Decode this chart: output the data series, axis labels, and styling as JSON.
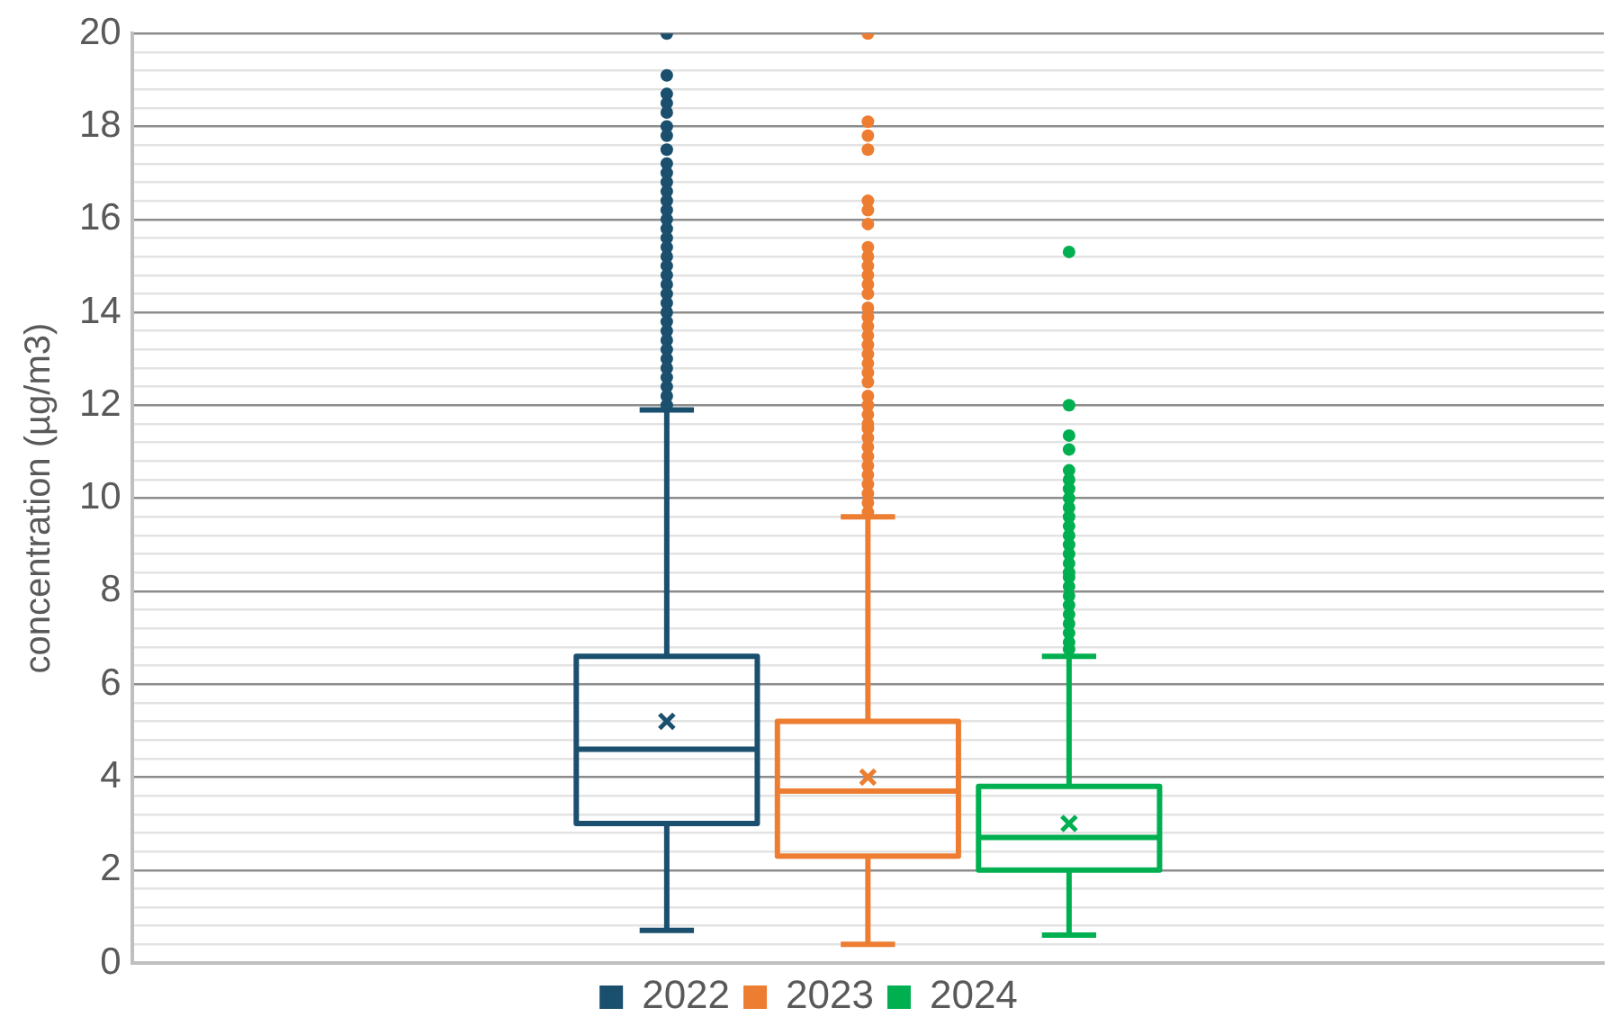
{
  "chart_data": {
    "type": "box",
    "ylabel": "concentration (µg/m3)",
    "categories": [
      null
    ],
    "ylim": [
      0,
      20
    ],
    "yticks": [
      0,
      {
        "value": 0.4,
        "label": null
      },
      {
        "value": 0.8,
        "label": null
      },
      {
        "value": 1.2,
        "label": null
      },
      {
        "value": 1.6,
        "label": null
      },
      2,
      {
        "value": 2.4,
        "label": null
      },
      {
        "value": 2.8,
        "label": null
      },
      {
        "value": 3.2,
        "label": null
      },
      {
        "value": 3.6,
        "label": null
      },
      4,
      {
        "value": 4.4,
        "label": null
      },
      {
        "value": 4.8,
        "label": null
      },
      {
        "value": 5.2,
        "label": null
      },
      {
        "value": 5.6,
        "label": null
      },
      6,
      {
        "value": 6.4,
        "label": null
      },
      {
        "value": 6.8,
        "label": null
      },
      {
        "value": 7.2,
        "label": null
      },
      {
        "value": 7.6,
        "label": null
      },
      8,
      {
        "value": 8.4,
        "label": null
      },
      {
        "value": 8.8,
        "label": null
      },
      {
        "value": 9.2,
        "label": null
      },
      {
        "value": 9.6,
        "label": null
      },
      10,
      {
        "value": 10.4,
        "label": null
      },
      {
        "value": 10.8,
        "label": null
      },
      {
        "value": 11.2,
        "label": null
      },
      {
        "value": 11.6,
        "label": null
      },
      12,
      {
        "value": 12.4,
        "label": null
      },
      {
        "value": 12.8,
        "label": null
      },
      {
        "value": 13.2,
        "label": null
      },
      {
        "value": 13.6,
        "label": null
      },
      14,
      {
        "value": 14.4,
        "label": null
      },
      {
        "value": 14.8,
        "label": null
      },
      {
        "value": 15.2,
        "label": null
      },
      {
        "value": 15.6,
        "label": null
      },
      16,
      {
        "value": 16.4,
        "label": null
      },
      {
        "value": 16.8,
        "label": null
      },
      {
        "value": 17.2,
        "label": null
      },
      {
        "value": 17.6,
        "label": null
      },
      18,
      {
        "value": 18.4,
        "label": null
      },
      {
        "value": 18.8,
        "label": null
      },
      {
        "value": 19.2,
        "label": null
      },
      {
        "value": 19.6,
        "label": null
      },
      20
    ],
    "grid": "y",
    "legend": "bottom",
    "marker": "circle",
    "series": [
      {
        "name": "2022",
        "color": "#1b4f6e",
        "boxes": [
          {
            "low": 0.7,
            "q1": 3.0,
            "median": 4.6,
            "q3": 6.6,
            "high": 11.9,
            "mean": 5.2,
            "outliers": [
              20.0,
              19.1,
              18.7,
              18.5,
              18.3,
              18.0,
              17.8,
              17.5,
              17.2,
              17.0,
              16.8,
              16.6,
              16.4,
              16.2,
              16.0,
              15.8,
              15.6,
              15.4,
              15.2,
              15.0,
              14.8,
              14.6,
              14.4,
              14.2,
              14.0,
              13.8,
              13.6,
              13.4,
              13.2,
              13.0,
              12.8,
              12.6,
              12.4,
              12.2,
              12.0
            ]
          }
        ]
      },
      {
        "name": "2023",
        "color": "#ed7d31",
        "boxes": [
          {
            "low": 0.4,
            "q1": 2.3,
            "median": 3.7,
            "q3": 5.2,
            "high": 9.6,
            "mean": 4.0,
            "outliers": [
              20.0,
              18.1,
              17.8,
              17.5,
              16.4,
              16.2,
              15.9,
              15.4,
              15.2,
              15.0,
              14.8,
              14.6,
              14.4,
              14.1,
              13.9,
              13.7,
              13.5,
              13.3,
              13.1,
              12.9,
              12.7,
              12.5,
              12.2,
              12.0,
              11.8,
              11.6,
              11.5,
              11.3,
              11.1,
              10.9,
              10.7,
              10.5,
              10.3,
              10.1,
              9.9,
              9.7
            ]
          }
        ]
      },
      {
        "name": "2024",
        "color": "#00b050",
        "boxes": [
          {
            "low": 0.6,
            "q1": 2.0,
            "median": 2.7,
            "q3": 3.8,
            "high": 6.6,
            "mean": 3.0,
            "outliers": [
              15.3,
              12.0,
              11.35,
              11.05,
              10.6,
              10.4,
              10.2,
              10.0,
              9.8,
              9.6,
              9.4,
              9.2,
              9.0,
              8.8,
              8.6,
              8.4,
              8.3,
              8.1,
              7.9,
              7.7,
              7.5,
              7.3,
              7.1,
              6.9,
              6.75
            ]
          }
        ]
      }
    ]
  }
}
